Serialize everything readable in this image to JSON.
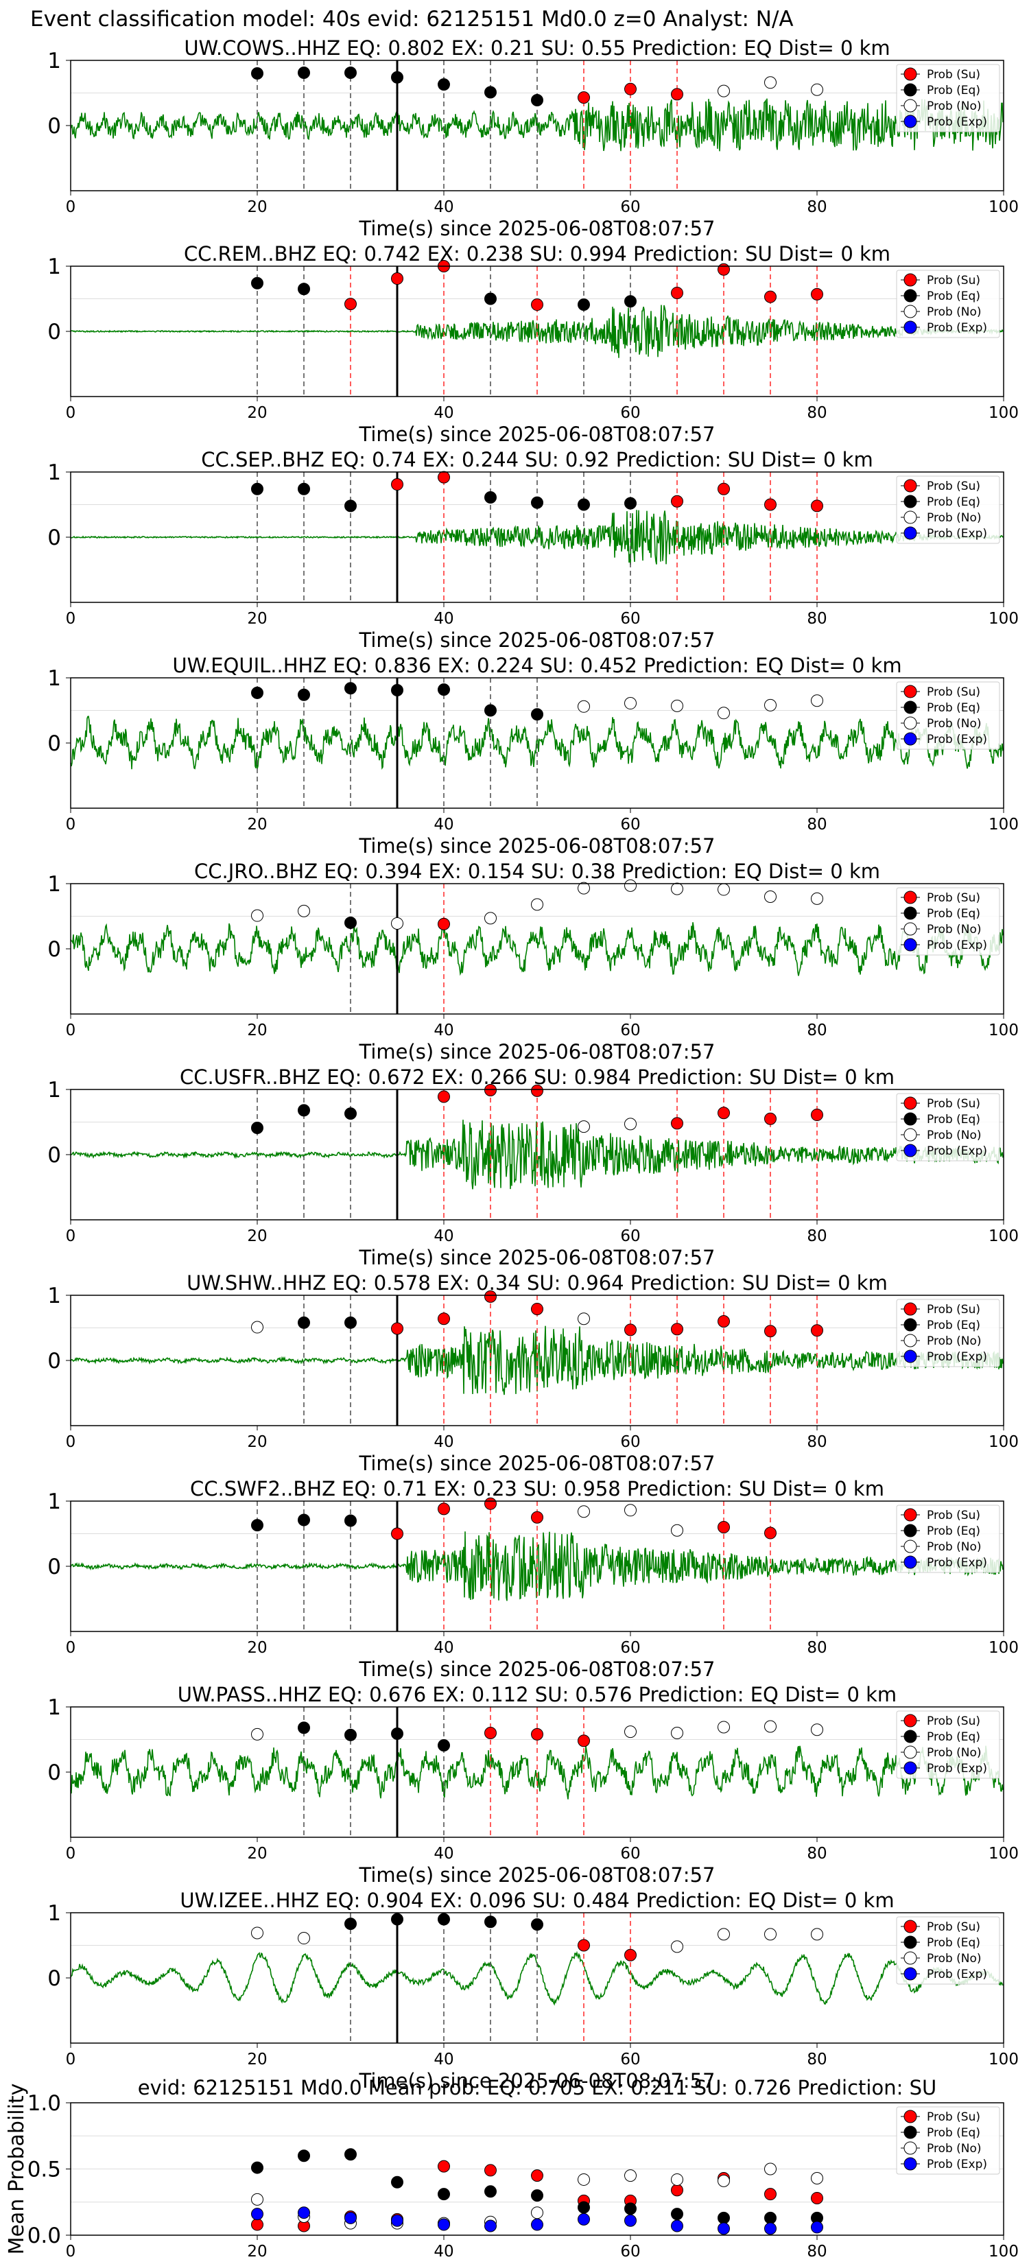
{
  "header": "Event classification model: 40s evid: 62125151 Md0.0 z=0 Analyst: N/A",
  "legend_labels": [
    "Prob (Su)",
    "Prob (Eq)",
    "Prob (No)",
    "Prob (Exp)"
  ],
  "colors": {
    "su": "#ff0000",
    "eq": "#000000",
    "no": "#ffffff",
    "exp": "#0000ff",
    "trace": "#008000"
  },
  "chart_data": [
    {
      "type": "line",
      "title": "UW.COWS..HHZ   EQ: 0.802  EX: 0.21  SU: 0.55   Prediction: EQ    Dist= 0 km",
      "xlabel": "Time(s) since 2025-06-08T08:07:57",
      "xlim": [
        0,
        100
      ],
      "ylim": [
        -1,
        1
      ],
      "xticks": [
        "0",
        "20",
        "40",
        "60",
        "80",
        "100"
      ],
      "yticks": [
        "1",
        "0"
      ],
      "trace_style": "mixed",
      "pick": 35,
      "points": [
        {
          "t": 20,
          "p": 0.8,
          "c": "eq"
        },
        {
          "t": 25,
          "p": 0.81,
          "c": "eq"
        },
        {
          "t": 30,
          "p": 0.81,
          "c": "eq"
        },
        {
          "t": 35,
          "p": 0.74,
          "c": "eq"
        },
        {
          "t": 40,
          "p": 0.63,
          "c": "eq"
        },
        {
          "t": 45,
          "p": 0.51,
          "c": "eq"
        },
        {
          "t": 50,
          "p": 0.39,
          "c": "eq"
        },
        {
          "t": 55,
          "p": 0.43,
          "c": "su"
        },
        {
          "t": 60,
          "p": 0.56,
          "c": "su"
        },
        {
          "t": 65,
          "p": 0.48,
          "c": "su"
        },
        {
          "t": 70,
          "p": 0.53,
          "c": "no"
        },
        {
          "t": 75,
          "p": 0.66,
          "c": "no"
        },
        {
          "t": 80,
          "p": 0.55,
          "c": "no"
        }
      ]
    },
    {
      "type": "line",
      "title": "CC.REM..BHZ   EQ: 0.742  EX: 0.238  SU: 0.994   Prediction: SU    Dist= 0 km",
      "xlabel": "Time(s) since 2025-06-08T08:07:57",
      "xlim": [
        0,
        100
      ],
      "ylim": [
        -1,
        1
      ],
      "xticks": [
        "0",
        "20",
        "40",
        "60",
        "80",
        "100"
      ],
      "yticks": [
        "1",
        "0"
      ],
      "trace_style": "quiet",
      "pick": 35,
      "points": [
        {
          "t": 20,
          "p": 0.74,
          "c": "eq"
        },
        {
          "t": 25,
          "p": 0.65,
          "c": "eq"
        },
        {
          "t": 30,
          "p": 0.42,
          "c": "su"
        },
        {
          "t": 35,
          "p": 0.81,
          "c": "su"
        },
        {
          "t": 40,
          "p": 1.0,
          "c": "su"
        },
        {
          "t": 45,
          "p": 0.5,
          "c": "eq"
        },
        {
          "t": 50,
          "p": 0.41,
          "c": "su"
        },
        {
          "t": 55,
          "p": 0.41,
          "c": "eq"
        },
        {
          "t": 60,
          "p": 0.46,
          "c": "eq"
        },
        {
          "t": 65,
          "p": 0.59,
          "c": "su"
        },
        {
          "t": 70,
          "p": 0.95,
          "c": "su"
        },
        {
          "t": 75,
          "p": 0.53,
          "c": "su"
        },
        {
          "t": 80,
          "p": 0.57,
          "c": "su"
        }
      ]
    },
    {
      "type": "line",
      "title": "CC.SEP..BHZ   EQ: 0.74  EX: 0.244  SU: 0.92   Prediction: SU    Dist= 0 km",
      "xlabel": "Time(s) since 2025-06-08T08:07:57",
      "xlim": [
        0,
        100
      ],
      "ylim": [
        -1,
        1
      ],
      "xticks": [
        "0",
        "20",
        "40",
        "60",
        "80",
        "100"
      ],
      "yticks": [
        "1",
        "0"
      ],
      "trace_style": "quiet",
      "pick": 35,
      "points": [
        {
          "t": 20,
          "p": 0.74,
          "c": "eq"
        },
        {
          "t": 25,
          "p": 0.74,
          "c": "eq"
        },
        {
          "t": 30,
          "p": 0.48,
          "c": "eq"
        },
        {
          "t": 35,
          "p": 0.81,
          "c": "su"
        },
        {
          "t": 40,
          "p": 0.92,
          "c": "su"
        },
        {
          "t": 45,
          "p": 0.61,
          "c": "eq"
        },
        {
          "t": 50,
          "p": 0.53,
          "c": "eq"
        },
        {
          "t": 55,
          "p": 0.5,
          "c": "eq"
        },
        {
          "t": 60,
          "p": 0.52,
          "c": "eq"
        },
        {
          "t": 65,
          "p": 0.55,
          "c": "su"
        },
        {
          "t": 70,
          "p": 0.74,
          "c": "su"
        },
        {
          "t": 75,
          "p": 0.5,
          "c": "su"
        },
        {
          "t": 80,
          "p": 0.48,
          "c": "su"
        }
      ]
    },
    {
      "type": "line",
      "title": "UW.EQUIL..HHZ   EQ: 0.836  EX: 0.224  SU: 0.452   Prediction: EQ    Dist= 0 km",
      "xlabel": "Time(s) since 2025-06-08T08:07:57",
      "xlim": [
        0,
        100
      ],
      "ylim": [
        -1,
        1
      ],
      "xticks": [
        "0",
        "20",
        "40",
        "60",
        "80",
        "100"
      ],
      "yticks": [
        "1",
        "0"
      ],
      "trace_style": "noisy",
      "pick": 35,
      "points": [
        {
          "t": 20,
          "p": 0.77,
          "c": "eq"
        },
        {
          "t": 25,
          "p": 0.74,
          "c": "eq"
        },
        {
          "t": 30,
          "p": 0.84,
          "c": "eq"
        },
        {
          "t": 35,
          "p": 0.81,
          "c": "eq"
        },
        {
          "t": 40,
          "p": 0.82,
          "c": "eq"
        },
        {
          "t": 45,
          "p": 0.5,
          "c": "eq"
        },
        {
          "t": 50,
          "p": 0.44,
          "c": "eq"
        },
        {
          "t": 55,
          "p": 0.56,
          "c": "no"
        },
        {
          "t": 60,
          "p": 0.61,
          "c": "no"
        },
        {
          "t": 65,
          "p": 0.57,
          "c": "no"
        },
        {
          "t": 70,
          "p": 0.46,
          "c": "no"
        },
        {
          "t": 75,
          "p": 0.58,
          "c": "no"
        },
        {
          "t": 80,
          "p": 0.65,
          "c": "no"
        }
      ]
    },
    {
      "type": "line",
      "title": "CC.JRO..BHZ   EQ: 0.394  EX: 0.154  SU: 0.38   Prediction: EQ    Dist= 0 km",
      "xlabel": "Time(s) since 2025-06-08T08:07:57",
      "xlim": [
        0,
        100
      ],
      "ylim": [
        -1,
        1
      ],
      "xticks": [
        "0",
        "20",
        "40",
        "60",
        "80",
        "100"
      ],
      "yticks": [
        "1",
        "0"
      ],
      "trace_style": "noisy",
      "pick": 35,
      "points": [
        {
          "t": 20,
          "p": 0.51,
          "c": "no"
        },
        {
          "t": 25,
          "p": 0.58,
          "c": "no"
        },
        {
          "t": 30,
          "p": 0.4,
          "c": "eq"
        },
        {
          "t": 35,
          "p": 0.39,
          "c": "no"
        },
        {
          "t": 40,
          "p": 0.38,
          "c": "su"
        },
        {
          "t": 45,
          "p": 0.47,
          "c": "no"
        },
        {
          "t": 50,
          "p": 0.68,
          "c": "no"
        },
        {
          "t": 55,
          "p": 0.93,
          "c": "no"
        },
        {
          "t": 60,
          "p": 0.97,
          "c": "no"
        },
        {
          "t": 65,
          "p": 0.92,
          "c": "no"
        },
        {
          "t": 70,
          "p": 0.91,
          "c": "no"
        },
        {
          "t": 75,
          "p": 0.8,
          "c": "no"
        },
        {
          "t": 80,
          "p": 0.77,
          "c": "no"
        }
      ]
    },
    {
      "type": "line",
      "title": "CC.USFR..BHZ   EQ: 0.672  EX: 0.266  SU: 0.984   Prediction: SU    Dist= 0 km",
      "xlabel": "Time(s) since 2025-06-08T08:07:57",
      "xlim": [
        0,
        100
      ],
      "ylim": [
        -1,
        1
      ],
      "xticks": [
        "0",
        "20",
        "40",
        "60",
        "80",
        "100"
      ],
      "yticks": [
        "1",
        "0"
      ],
      "trace_style": "loud",
      "pick": 35,
      "points": [
        {
          "t": 20,
          "p": 0.41,
          "c": "eq"
        },
        {
          "t": 25,
          "p": 0.68,
          "c": "eq"
        },
        {
          "t": 30,
          "p": 0.63,
          "c": "eq"
        },
        {
          "t": 40,
          "p": 0.89,
          "c": "su"
        },
        {
          "t": 45,
          "p": 0.99,
          "c": "su"
        },
        {
          "t": 50,
          "p": 0.98,
          "c": "su"
        },
        {
          "t": 55,
          "p": 0.43,
          "c": "no"
        },
        {
          "t": 60,
          "p": 0.47,
          "c": "no"
        },
        {
          "t": 65,
          "p": 0.48,
          "c": "su"
        },
        {
          "t": 70,
          "p": 0.64,
          "c": "su"
        },
        {
          "t": 75,
          "p": 0.55,
          "c": "su"
        },
        {
          "t": 80,
          "p": 0.61,
          "c": "su"
        }
      ]
    },
    {
      "type": "line",
      "title": "UW.SHW..HHZ   EQ: 0.578  EX: 0.34  SU: 0.964   Prediction: SU    Dist= 0 km",
      "xlabel": "Time(s) since 2025-06-08T08:07:57",
      "xlim": [
        0,
        100
      ],
      "ylim": [
        -1,
        1
      ],
      "xticks": [
        "0",
        "20",
        "40",
        "60",
        "80",
        "100"
      ],
      "yticks": [
        "1",
        "0"
      ],
      "trace_style": "loud",
      "pick": 35,
      "points": [
        {
          "t": 20,
          "p": 0.51,
          "c": "no"
        },
        {
          "t": 25,
          "p": 0.58,
          "c": "eq"
        },
        {
          "t": 30,
          "p": 0.58,
          "c": "eq"
        },
        {
          "t": 35,
          "p": 0.49,
          "c": "su"
        },
        {
          "t": 40,
          "p": 0.64,
          "c": "su"
        },
        {
          "t": 45,
          "p": 0.98,
          "c": "su"
        },
        {
          "t": 50,
          "p": 0.79,
          "c": "su"
        },
        {
          "t": 55,
          "p": 0.64,
          "c": "no"
        },
        {
          "t": 60,
          "p": 0.47,
          "c": "su"
        },
        {
          "t": 65,
          "p": 0.48,
          "c": "su"
        },
        {
          "t": 70,
          "p": 0.6,
          "c": "su"
        },
        {
          "t": 75,
          "p": 0.45,
          "c": "su"
        },
        {
          "t": 80,
          "p": 0.46,
          "c": "su"
        }
      ]
    },
    {
      "type": "line",
      "title": "CC.SWF2..BHZ   EQ: 0.71  EX: 0.23  SU: 0.958   Prediction: SU    Dist= 0 km",
      "xlabel": "Time(s) since 2025-06-08T08:07:57",
      "xlim": [
        0,
        100
      ],
      "ylim": [
        -1,
        1
      ],
      "xticks": [
        "0",
        "20",
        "40",
        "60",
        "80",
        "100"
      ],
      "yticks": [
        "1",
        "0"
      ],
      "trace_style": "loud",
      "pick": 35,
      "points": [
        {
          "t": 20,
          "p": 0.63,
          "c": "eq"
        },
        {
          "t": 25,
          "p": 0.71,
          "c": "eq"
        },
        {
          "t": 30,
          "p": 0.7,
          "c": "eq"
        },
        {
          "t": 35,
          "p": 0.5,
          "c": "su"
        },
        {
          "t": 40,
          "p": 0.88,
          "c": "su"
        },
        {
          "t": 45,
          "p": 0.96,
          "c": "su"
        },
        {
          "t": 50,
          "p": 0.75,
          "c": "su"
        },
        {
          "t": 55,
          "p": 0.84,
          "c": "no"
        },
        {
          "t": 60,
          "p": 0.86,
          "c": "no"
        },
        {
          "t": 65,
          "p": 0.55,
          "c": "no"
        },
        {
          "t": 70,
          "p": 0.6,
          "c": "su"
        },
        {
          "t": 75,
          "p": 0.51,
          "c": "su"
        }
      ]
    },
    {
      "type": "line",
      "title": "UW.PASS..HHZ   EQ: 0.676  EX: 0.112  SU: 0.576   Prediction: EQ    Dist= 0 km",
      "xlabel": "Time(s) since 2025-06-08T08:07:57",
      "xlim": [
        0,
        100
      ],
      "ylim": [
        -1,
        1
      ],
      "xticks": [
        "0",
        "20",
        "40",
        "60",
        "80",
        "100"
      ],
      "yticks": [
        "1",
        "0"
      ],
      "trace_style": "noisy",
      "pick": 35,
      "points": [
        {
          "t": 20,
          "p": 0.58,
          "c": "no"
        },
        {
          "t": 25,
          "p": 0.68,
          "c": "eq"
        },
        {
          "t": 30,
          "p": 0.57,
          "c": "eq"
        },
        {
          "t": 35,
          "p": 0.59,
          "c": "eq"
        },
        {
          "t": 40,
          "p": 0.41,
          "c": "eq"
        },
        {
          "t": 45,
          "p": 0.6,
          "c": "su"
        },
        {
          "t": 50,
          "p": 0.58,
          "c": "su"
        },
        {
          "t": 55,
          "p": 0.48,
          "c": "su"
        },
        {
          "t": 60,
          "p": 0.62,
          "c": "no"
        },
        {
          "t": 65,
          "p": 0.6,
          "c": "no"
        },
        {
          "t": 70,
          "p": 0.69,
          "c": "no"
        },
        {
          "t": 75,
          "p": 0.7,
          "c": "no"
        },
        {
          "t": 80,
          "p": 0.65,
          "c": "no"
        }
      ]
    },
    {
      "type": "line",
      "title": "UW.IZEE..HHZ   EQ: 0.904  EX: 0.096  SU: 0.484   Prediction: EQ    Dist= 0 km",
      "xlabel": "Time(s) since 2025-06-08T08:07:57",
      "xlim": [
        0,
        100
      ],
      "ylim": [
        -1,
        1
      ],
      "xticks": [
        "0",
        "20",
        "40",
        "60",
        "80",
        "100"
      ],
      "yticks": [
        "1",
        "0"
      ],
      "trace_style": "waves",
      "pick": 35,
      "points": [
        {
          "t": 20,
          "p": 0.69,
          "c": "no"
        },
        {
          "t": 25,
          "p": 0.61,
          "c": "no"
        },
        {
          "t": 30,
          "p": 0.83,
          "c": "eq"
        },
        {
          "t": 35,
          "p": 0.9,
          "c": "eq"
        },
        {
          "t": 40,
          "p": 0.9,
          "c": "eq"
        },
        {
          "t": 45,
          "p": 0.86,
          "c": "eq"
        },
        {
          "t": 50,
          "p": 0.82,
          "c": "eq"
        },
        {
          "t": 55,
          "p": 0.5,
          "c": "su"
        },
        {
          "t": 60,
          "p": 0.35,
          "c": "su"
        },
        {
          "t": 65,
          "p": 0.48,
          "c": "no"
        },
        {
          "t": 70,
          "p": 0.67,
          "c": "no"
        },
        {
          "t": 75,
          "p": 0.67,
          "c": "no"
        },
        {
          "t": 80,
          "p": 0.67,
          "c": "no"
        }
      ]
    },
    {
      "type": "scatter",
      "title": "evid: 62125151  Md0.0   Mean prob:   EQ: 0.705  EX: 0.211  SU: 0.726   Prediction: SU",
      "ylabel": "Mean Probability",
      "xlim": [
        0,
        100
      ],
      "ylim": [
        0,
        1
      ],
      "xticks": [
        "0",
        "20",
        "40",
        "60",
        "80",
        "100"
      ],
      "yticks": [
        "1.0",
        "0.5",
        "0.0"
      ],
      "x": [
        20,
        25,
        30,
        35,
        40,
        45,
        50,
        55,
        60,
        65,
        70,
        75,
        80
      ],
      "series": [
        {
          "name": "Prob (Su)",
          "values": [
            0.08,
            0.07,
            0.14,
            0.12,
            0.52,
            0.49,
            0.45,
            0.26,
            0.26,
            0.34,
            0.43,
            0.31,
            0.28
          ]
        },
        {
          "name": "Prob (Eq)",
          "values": [
            0.51,
            0.6,
            0.61,
            0.4,
            0.31,
            0.33,
            0.3,
            0.21,
            0.2,
            0.16,
            0.13,
            0.13,
            0.13
          ]
        },
        {
          "name": "Prob (No)",
          "values": [
            0.27,
            0.14,
            0.09,
            0.09,
            0.09,
            0.1,
            0.17,
            0.42,
            0.45,
            0.42,
            0.41,
            0.5,
            0.43
          ]
        },
        {
          "name": "Prob (Exp)",
          "values": [
            0.16,
            0.17,
            0.13,
            0.11,
            0.08,
            0.07,
            0.08,
            0.12,
            0.11,
            0.07,
            0.05,
            0.05,
            0.06
          ]
        }
      ]
    }
  ]
}
